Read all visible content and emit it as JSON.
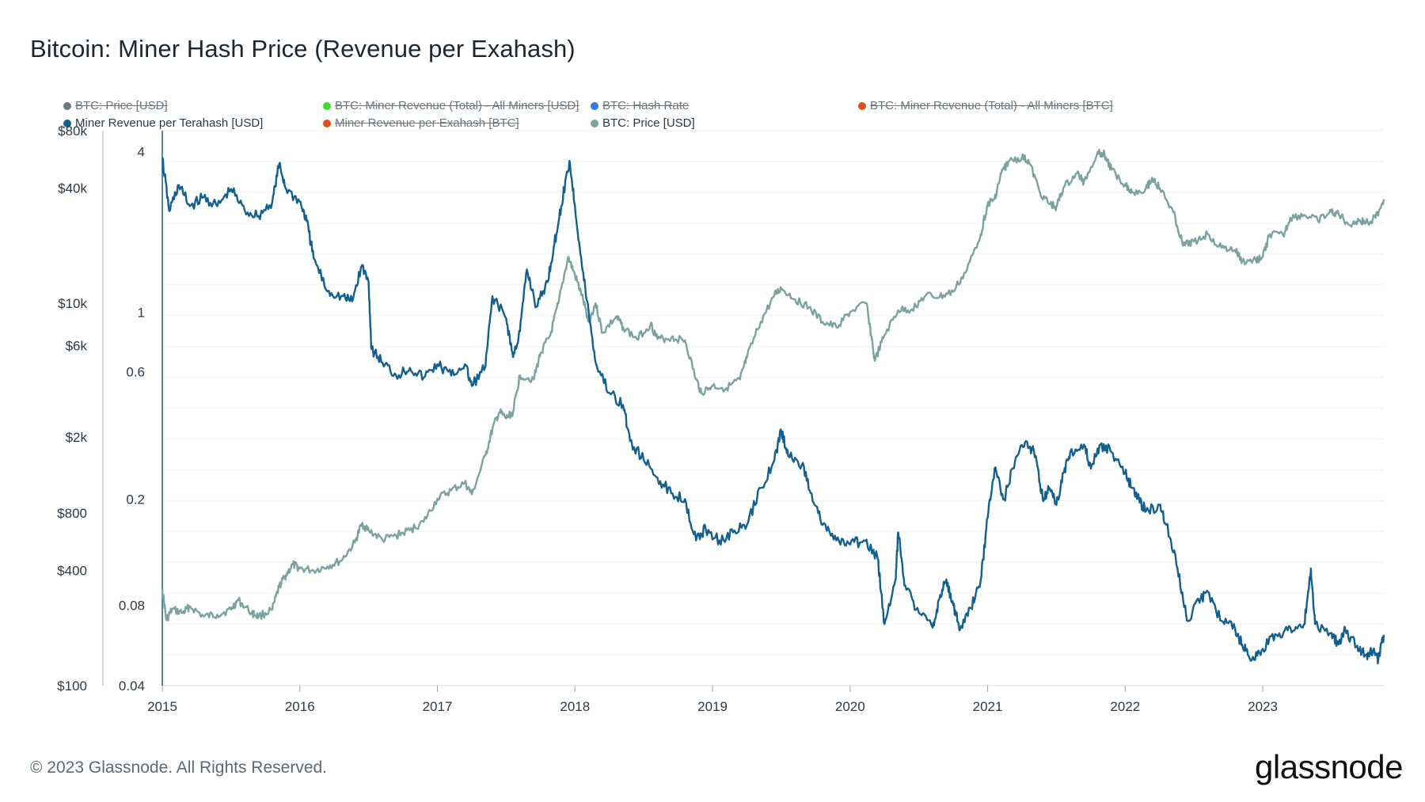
{
  "title": "Bitcoin: Miner Hash Price (Revenue per Exahash)",
  "footer": "© 2023 Glassnode. All Rights Reserved.",
  "logo": "glassnode",
  "legend": [
    {
      "label": "BTC: Price [USD]",
      "color": "#6b7a80",
      "active": false
    },
    {
      "label": "BTC: Miner Revenue (Total) - All Miners [USD]",
      "color": "#3ddc2a",
      "active": false
    },
    {
      "label": "BTC: Hash Rate",
      "color": "#2f7de1",
      "active": false
    },
    {
      "label": "BTC: Miner Revenue (Total) - All Miners [BTC]",
      "color": "#e2501a",
      "active": false
    },
    {
      "label": "Miner Revenue per Terahash [USD]",
      "color": "#12608f",
      "active": true
    },
    {
      "label": "Miner Revenue per Exahash [BTC]",
      "color": "#e2501a",
      "active": false
    },
    {
      "label": "BTC: Price [USD]",
      "color": "#7aa3a0",
      "active": true
    }
  ],
  "chart_data": {
    "type": "line",
    "title": "Bitcoin: Miner Hash Price (Revenue per Exahash)",
    "x_ticks": [
      "2015",
      "2016",
      "2017",
      "2018",
      "2019",
      "2020",
      "2021",
      "2022",
      "2023"
    ],
    "x_range": [
      2015.0,
      2023.88
    ],
    "y_left": {
      "label": "BTC: Price [USD]",
      "scale": "log",
      "range": [
        100,
        80000
      ],
      "ticks": [
        100,
        400,
        800,
        2000,
        6000,
        10000,
        40000,
        80000
      ],
      "tick_labels": [
        "$100",
        "$400",
        "$800",
        "$2k",
        "$6k",
        "$10k",
        "$40k",
        "$80k"
      ]
    },
    "y_right_inner": {
      "label": "Miner Revenue per Terahash [USD]",
      "scale": "log",
      "range": [
        0.04,
        4.8
      ],
      "ticks": [
        0.04,
        0.08,
        0.2,
        0.6,
        1,
        4
      ],
      "tick_labels": [
        "0.04",
        "0.08",
        "0.2",
        "0.6",
        "1",
        "4"
      ]
    },
    "series": [
      {
        "name": "Miner Revenue per Terahash [USD]",
        "color": "#12608f",
        "axis": "inner",
        "points": [
          [
            2015.0,
            3.8
          ],
          [
            2015.05,
            2.4
          ],
          [
            2015.12,
            3.0
          ],
          [
            2015.2,
            2.5
          ],
          [
            2015.3,
            2.7
          ],
          [
            2015.4,
            2.5
          ],
          [
            2015.5,
            2.9
          ],
          [
            2015.6,
            2.4
          ],
          [
            2015.7,
            2.3
          ],
          [
            2015.8,
            2.6
          ],
          [
            2015.85,
            3.6
          ],
          [
            2015.9,
            2.9
          ],
          [
            2016.0,
            2.6
          ],
          [
            2016.05,
            2.2
          ],
          [
            2016.1,
            1.6
          ],
          [
            2016.2,
            1.2
          ],
          [
            2016.3,
            1.15
          ],
          [
            2016.38,
            1.1
          ],
          [
            2016.45,
            1.5
          ],
          [
            2016.5,
            1.3
          ],
          [
            2016.52,
            0.73
          ],
          [
            2016.6,
            0.65
          ],
          [
            2016.7,
            0.58
          ],
          [
            2016.8,
            0.62
          ],
          [
            2016.9,
            0.57
          ],
          [
            2017.0,
            0.64
          ],
          [
            2017.1,
            0.58
          ],
          [
            2017.2,
            0.64
          ],
          [
            2017.25,
            0.53
          ],
          [
            2017.35,
            0.63
          ],
          [
            2017.4,
            1.15
          ],
          [
            2017.5,
            0.95
          ],
          [
            2017.55,
            0.68
          ],
          [
            2017.6,
            0.85
          ],
          [
            2017.65,
            1.45
          ],
          [
            2017.72,
            1.05
          ],
          [
            2017.8,
            1.3
          ],
          [
            2017.85,
            1.8
          ],
          [
            2017.9,
            2.5
          ],
          [
            2017.96,
            3.7
          ],
          [
            2018.0,
            2.5
          ],
          [
            2018.05,
            1.5
          ],
          [
            2018.1,
            1.0
          ],
          [
            2018.15,
            0.65
          ],
          [
            2018.25,
            0.5
          ],
          [
            2018.35,
            0.45
          ],
          [
            2018.4,
            0.33
          ],
          [
            2018.5,
            0.28
          ],
          [
            2018.6,
            0.24
          ],
          [
            2018.7,
            0.21
          ],
          [
            2018.8,
            0.2
          ],
          [
            2018.88,
            0.14
          ],
          [
            2018.95,
            0.155
          ],
          [
            2019.05,
            0.14
          ],
          [
            2019.15,
            0.15
          ],
          [
            2019.25,
            0.16
          ],
          [
            2019.35,
            0.22
          ],
          [
            2019.45,
            0.28
          ],
          [
            2019.5,
            0.36
          ],
          [
            2019.55,
            0.29
          ],
          [
            2019.65,
            0.27
          ],
          [
            2019.72,
            0.21
          ],
          [
            2019.8,
            0.16
          ],
          [
            2019.9,
            0.14
          ],
          [
            2020.0,
            0.135
          ],
          [
            2020.1,
            0.14
          ],
          [
            2020.2,
            0.12
          ],
          [
            2020.25,
            0.068
          ],
          [
            2020.33,
            0.1
          ],
          [
            2020.35,
            0.15
          ],
          [
            2020.4,
            0.095
          ],
          [
            2020.5,
            0.075
          ],
          [
            2020.6,
            0.066
          ],
          [
            2020.65,
            0.085
          ],
          [
            2020.7,
            0.1
          ],
          [
            2020.75,
            0.08
          ],
          [
            2020.8,
            0.065
          ],
          [
            2020.88,
            0.078
          ],
          [
            2020.95,
            0.1
          ],
          [
            2021.0,
            0.17
          ],
          [
            2021.05,
            0.26
          ],
          [
            2021.12,
            0.2
          ],
          [
            2021.2,
            0.28
          ],
          [
            2021.28,
            0.33
          ],
          [
            2021.35,
            0.29
          ],
          [
            2021.4,
            0.2
          ],
          [
            2021.45,
            0.22
          ],
          [
            2021.5,
            0.19
          ],
          [
            2021.55,
            0.25
          ],
          [
            2021.6,
            0.3
          ],
          [
            2021.7,
            0.32
          ],
          [
            2021.75,
            0.26
          ],
          [
            2021.82,
            0.32
          ],
          [
            2021.9,
            0.3
          ],
          [
            2022.0,
            0.25
          ],
          [
            2022.05,
            0.22
          ],
          [
            2022.1,
            0.2
          ],
          [
            2022.15,
            0.18
          ],
          [
            2022.25,
            0.19
          ],
          [
            2022.3,
            0.16
          ],
          [
            2022.38,
            0.11
          ],
          [
            2022.45,
            0.07
          ],
          [
            2022.55,
            0.085
          ],
          [
            2022.6,
            0.09
          ],
          [
            2022.7,
            0.07
          ],
          [
            2022.8,
            0.065
          ],
          [
            2022.85,
            0.057
          ],
          [
            2022.92,
            0.05
          ],
          [
            2023.0,
            0.055
          ],
          [
            2023.1,
            0.062
          ],
          [
            2023.2,
            0.066
          ],
          [
            2023.3,
            0.068
          ],
          [
            2023.35,
            0.11
          ],
          [
            2023.38,
            0.068
          ],
          [
            2023.5,
            0.063
          ],
          [
            2023.55,
            0.057
          ],
          [
            2023.6,
            0.065
          ],
          [
            2023.68,
            0.056
          ],
          [
            2023.75,
            0.052
          ],
          [
            2023.8,
            0.054
          ],
          [
            2023.84,
            0.05
          ],
          [
            2023.88,
            0.062
          ]
        ]
      },
      {
        "name": "BTC: Price [USD]",
        "color": "#7aa3a0",
        "axis": "left",
        "points": [
          [
            2015.0,
            320
          ],
          [
            2015.03,
            220
          ],
          [
            2015.07,
            250
          ],
          [
            2015.15,
            240
          ],
          [
            2015.2,
            260
          ],
          [
            2015.3,
            230
          ],
          [
            2015.4,
            235
          ],
          [
            2015.5,
            250
          ],
          [
            2015.55,
            280
          ],
          [
            2015.65,
            240
          ],
          [
            2015.7,
            230
          ],
          [
            2015.8,
            250
          ],
          [
            2015.85,
            330
          ],
          [
            2015.9,
            380
          ],
          [
            2015.95,
            430
          ],
          [
            2016.0,
            410
          ],
          [
            2016.1,
            400
          ],
          [
            2016.2,
            420
          ],
          [
            2016.3,
            450
          ],
          [
            2016.4,
            560
          ],
          [
            2016.45,
            700
          ],
          [
            2016.5,
            650
          ],
          [
            2016.6,
            580
          ],
          [
            2016.7,
            610
          ],
          [
            2016.8,
            650
          ],
          [
            2016.9,
            720
          ],
          [
            2017.0,
            950
          ],
          [
            2017.1,
            1050
          ],
          [
            2017.2,
            1150
          ],
          [
            2017.25,
            1000
          ],
          [
            2017.35,
            1600
          ],
          [
            2017.4,
            2200
          ],
          [
            2017.45,
            2700
          ],
          [
            2017.5,
            2500
          ],
          [
            2017.55,
            2700
          ],
          [
            2017.6,
            4200
          ],
          [
            2017.7,
            4000
          ],
          [
            2017.75,
            5500
          ],
          [
            2017.82,
            6800
          ],
          [
            2017.88,
            10000
          ],
          [
            2017.95,
            17500
          ],
          [
            2018.0,
            14000
          ],
          [
            2018.05,
            11000
          ],
          [
            2018.1,
            8000
          ],
          [
            2018.15,
            10000
          ],
          [
            2018.2,
            7000
          ],
          [
            2018.3,
            8500
          ],
          [
            2018.35,
            7500
          ],
          [
            2018.45,
            6500
          ],
          [
            2018.55,
            7800
          ],
          [
            2018.6,
            6500
          ],
          [
            2018.7,
            6600
          ],
          [
            2018.8,
            6400
          ],
          [
            2018.88,
            4000
          ],
          [
            2018.92,
            3400
          ],
          [
            2019.0,
            3700
          ],
          [
            2019.1,
            3600
          ],
          [
            2019.2,
            4000
          ],
          [
            2019.25,
            5200
          ],
          [
            2019.35,
            8000
          ],
          [
            2019.45,
            11000
          ],
          [
            2019.5,
            12000
          ],
          [
            2019.6,
            10500
          ],
          [
            2019.7,
            9500
          ],
          [
            2019.8,
            8000
          ],
          [
            2019.9,
            7500
          ],
          [
            2020.0,
            9000
          ],
          [
            2020.12,
            10000
          ],
          [
            2020.18,
            5000
          ],
          [
            2020.25,
            6800
          ],
          [
            2020.35,
            9200
          ],
          [
            2020.45,
            9300
          ],
          [
            2020.55,
            11000
          ],
          [
            2020.65,
            10800
          ],
          [
            2020.75,
            11500
          ],
          [
            2020.85,
            15000
          ],
          [
            2020.95,
            23000
          ],
          [
            2021.0,
            33000
          ],
          [
            2021.05,
            35000
          ],
          [
            2021.1,
            48000
          ],
          [
            2021.15,
            55000
          ],
          [
            2021.25,
            58000
          ],
          [
            2021.3,
            55000
          ],
          [
            2021.38,
            38000
          ],
          [
            2021.45,
            33000
          ],
          [
            2021.5,
            32000
          ],
          [
            2021.55,
            40000
          ],
          [
            2021.65,
            48000
          ],
          [
            2021.7,
            43000
          ],
          [
            2021.8,
            62000
          ],
          [
            2021.85,
            60000
          ],
          [
            2021.9,
            50000
          ],
          [
            2022.0,
            42000
          ],
          [
            2022.05,
            38000
          ],
          [
            2022.15,
            40000
          ],
          [
            2022.2,
            45000
          ],
          [
            2022.25,
            40000
          ],
          [
            2022.35,
            30000
          ],
          [
            2022.42,
            20000
          ],
          [
            2022.5,
            21000
          ],
          [
            2022.6,
            23000
          ],
          [
            2022.7,
            19500
          ],
          [
            2022.8,
            19000
          ],
          [
            2022.85,
            16500
          ],
          [
            2022.95,
            16800
          ],
          [
            2023.0,
            17500
          ],
          [
            2023.05,
            23000
          ],
          [
            2023.15,
            22500
          ],
          [
            2023.2,
            28000
          ],
          [
            2023.3,
            29000
          ],
          [
            2023.4,
            27000
          ],
          [
            2023.5,
            30000
          ],
          [
            2023.55,
            29500
          ],
          [
            2023.62,
            26000
          ],
          [
            2023.7,
            27000
          ],
          [
            2023.75,
            26500
          ],
          [
            2023.82,
            28000
          ],
          [
            2023.88,
            35000
          ]
        ]
      }
    ]
  }
}
